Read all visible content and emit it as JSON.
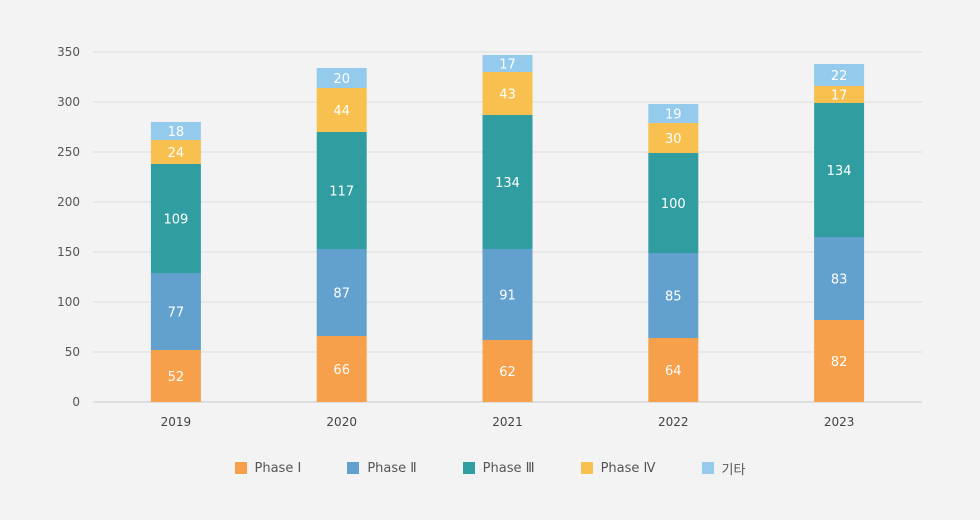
{
  "chart_data": {
    "type": "bar",
    "stacked": true,
    "title": "",
    "xlabel": "",
    "ylabel": "",
    "categories": [
      "2019",
      "2020",
      "2021",
      "2022",
      "2023"
    ],
    "ylim": [
      0,
      350
    ],
    "yticks": [
      "0",
      "50",
      "100",
      "150",
      "200",
      "250",
      "300",
      "350"
    ],
    "grid": true,
    "legend_position": "bottom",
    "series": [
      {
        "name": "Phase Ⅰ",
        "color": "#f7a04b",
        "values": [
          52,
          66,
          62,
          64,
          82
        ]
      },
      {
        "name": "Phase Ⅱ",
        "color": "#62a0cd",
        "values": [
          77,
          87,
          91,
          85,
          83
        ]
      },
      {
        "name": "Phase Ⅲ",
        "color": "#309ea0",
        "values": [
          109,
          117,
          134,
          100,
          134
        ]
      },
      {
        "name": "Phase Ⅳ",
        "color": "#f8c14f",
        "values": [
          24,
          44,
          43,
          30,
          17
        ]
      },
      {
        "name": "기타",
        "color": "#94cbed",
        "values": [
          18,
          20,
          17,
          19,
          22
        ]
      }
    ]
  }
}
